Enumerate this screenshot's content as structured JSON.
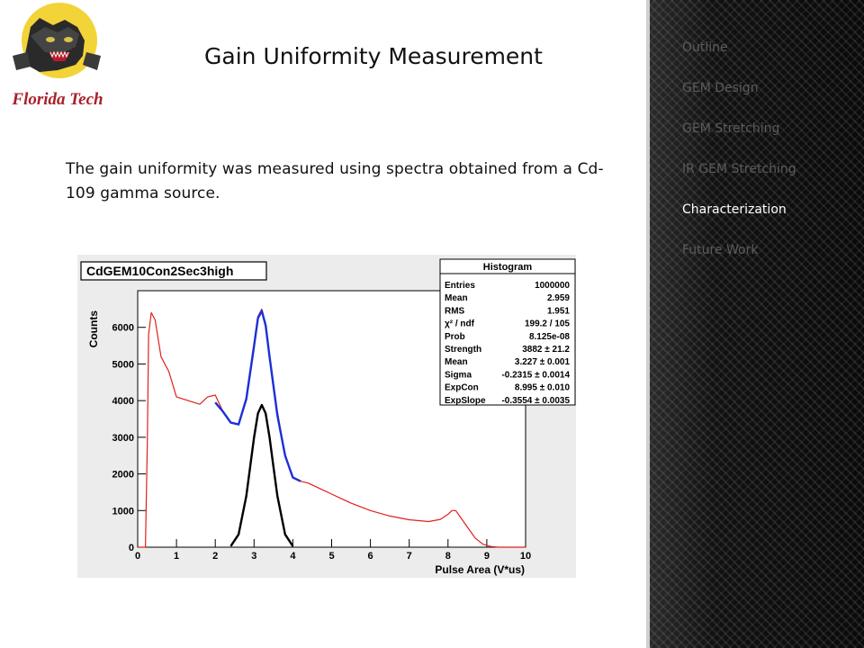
{
  "slide": {
    "title": "Gain Uniformity Measurement",
    "body": "The gain uniformity was measured using spectra obtained from a Cd-109 gamma source.",
    "logo_text": "Florida Tech"
  },
  "nav": {
    "items": [
      {
        "label": "Outline",
        "active": false
      },
      {
        "label": "GEM Design",
        "active": false
      },
      {
        "label": "GEM Stretching",
        "active": false
      },
      {
        "label": "IR GEM Stretching",
        "active": false
      },
      {
        "label": "Characterization",
        "active": true
      },
      {
        "label": "Future Work",
        "active": false
      }
    ]
  },
  "chart_data": {
    "type": "line",
    "title": "CdGEM10Con2Sec3high",
    "xlabel": "Pulse Area (V*us)",
    "ylabel": "Counts",
    "xlim": [
      0,
      10
    ],
    "ylim": [
      0,
      7000
    ],
    "x_ticks": [
      "0",
      "1",
      "2",
      "3",
      "4",
      "5",
      "6",
      "7",
      "8",
      "9",
      "10"
    ],
    "y_ticks": [
      "0",
      "1000",
      "2000",
      "3000",
      "4000",
      "5000",
      "6000"
    ],
    "series": [
      {
        "color": "#e0201a",
        "x": [
          0,
          0.2,
          0.25,
          0.28,
          0.35,
          0.45,
          0.6,
          0.8,
          1.0,
          1.3,
          1.6,
          1.8,
          2.0,
          2.2,
          2.4,
          2.6,
          2.8,
          3.0,
          3.1,
          3.2,
          3.3,
          3.4,
          3.6,
          3.8,
          4.0,
          4.2,
          4.4,
          4.7,
          5.0,
          5.5,
          6.0,
          6.5,
          7.0,
          7.5,
          7.8,
          8.0,
          8.1,
          8.2,
          8.3,
          8.5,
          8.7,
          8.9,
          9.1,
          9.3,
          10
        ],
        "y": [
          0,
          0,
          3000,
          5800,
          6400,
          6200,
          5200,
          4800,
          4100,
          4000,
          3900,
          4100,
          4150,
          3700,
          3400,
          3350,
          4000,
          5400,
          6300,
          6500,
          6000,
          5200,
          3700,
          2500,
          1900,
          1800,
          1750,
          1600,
          1450,
          1200,
          1000,
          850,
          750,
          700,
          760,
          900,
          1000,
          1000,
          850,
          550,
          250,
          80,
          20,
          0,
          0
        ]
      },
      {
        "color": "#1c2fd6",
        "x": [
          2.0,
          2.2,
          2.4,
          2.6,
          2.8,
          3.0,
          3.1,
          3.2,
          3.3,
          3.4,
          3.6,
          3.8,
          4.0,
          4.2
        ],
        "y": [
          3950,
          3700,
          3400,
          3350,
          4050,
          5500,
          6250,
          6450,
          6050,
          5200,
          3600,
          2500,
          1900,
          1800
        ]
      },
      {
        "color": "#000000",
        "x": [
          2.4,
          2.6,
          2.8,
          2.9,
          3.0,
          3.1,
          3.2,
          3.3,
          3.4,
          3.5,
          3.6,
          3.8,
          4.0
        ],
        "y": [
          30,
          350,
          1400,
          2200,
          3000,
          3650,
          3880,
          3650,
          3000,
          2200,
          1400,
          350,
          30
        ]
      }
    ],
    "stats_box": {
      "title": "Histogram",
      "rows": [
        [
          "Entries",
          "1000000"
        ],
        [
          "Mean",
          "2.959"
        ],
        [
          "RMS",
          "1.951"
        ],
        [
          "χ² / ndf",
          "199.2 / 105"
        ],
        [
          "Prob",
          "8.125e-08"
        ],
        [
          "Strength",
          "3882 ± 21.2"
        ],
        [
          "Mean",
          "3.227 ± 0.001"
        ],
        [
          "Sigma",
          "-0.2315 ± 0.0014"
        ],
        [
          "ExpCon",
          "8.995 ± 0.010"
        ],
        [
          "ExpSlope",
          "-0.3554 ± 0.0035"
        ]
      ]
    }
  }
}
